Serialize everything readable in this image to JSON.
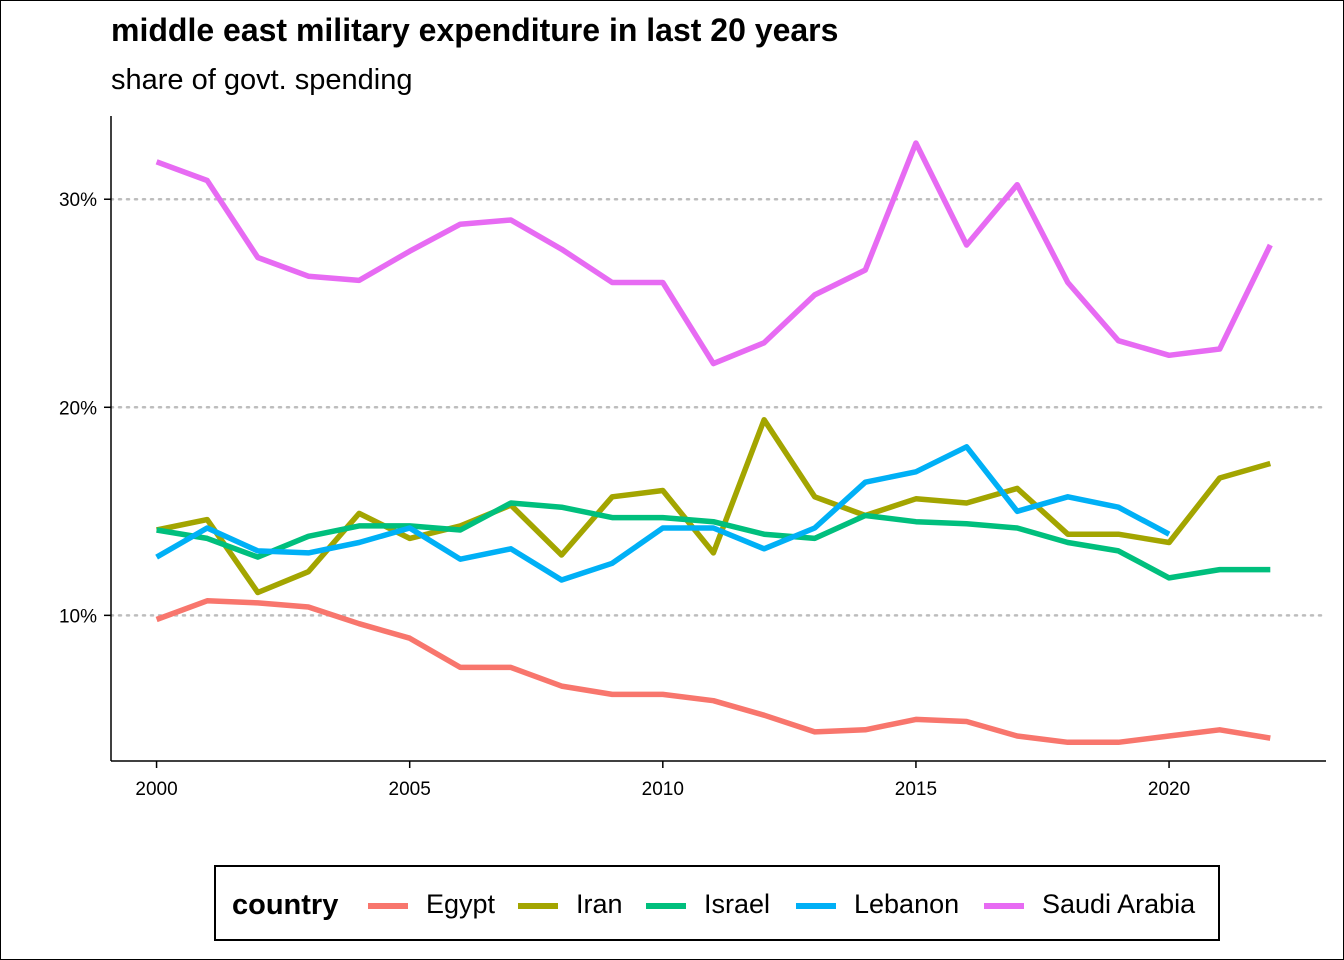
{
  "chart_data": {
    "type": "line",
    "title": "middle east military expenditure in last 20 years",
    "subtitle": "share of govt. spending",
    "xlabel": "",
    "ylabel": "",
    "xlim": [
      1999.1,
      2023.1
    ],
    "ylim": [
      3.0,
      34.0
    ],
    "x_ticks": [
      2000,
      2005,
      2010,
      2015,
      2020
    ],
    "x_tick_labels": [
      "2000",
      "2005",
      "2010",
      "2015",
      "2020"
    ],
    "y_ticks": [
      10,
      20,
      30
    ],
    "y_tick_labels": [
      "10%",
      "20%",
      "30%"
    ],
    "grid": "horizontal major, dotted",
    "legend": {
      "title": "country",
      "position": "bottom"
    },
    "x": [
      2000,
      2001,
      2002,
      2003,
      2004,
      2005,
      2006,
      2007,
      2008,
      2009,
      2010,
      2011,
      2012,
      2013,
      2014,
      2015,
      2016,
      2017,
      2018,
      2019,
      2020,
      2021,
      2022
    ],
    "series": [
      {
        "name": "Egypt",
        "color": "#F8766D",
        "values": [
          9.8,
          10.7,
          10.6,
          10.4,
          9.6,
          8.9,
          7.5,
          7.5,
          6.6,
          6.2,
          6.2,
          5.9,
          5.2,
          4.4,
          4.5,
          5.0,
          4.9,
          4.2,
          3.9,
          3.9,
          4.2,
          4.5,
          4.1
        ]
      },
      {
        "name": "Iran",
        "color": "#A3A500",
        "values": [
          14.1,
          14.6,
          11.1,
          12.1,
          14.9,
          13.7,
          14.3,
          15.3,
          12.9,
          15.7,
          16.0,
          13.0,
          19.4,
          15.7,
          14.8,
          15.6,
          15.4,
          16.1,
          13.9,
          13.9,
          13.5,
          16.6,
          17.3
        ]
      },
      {
        "name": "Israel",
        "color": "#00BF7D",
        "values": [
          14.1,
          13.7,
          12.8,
          13.8,
          14.3,
          14.3,
          14.1,
          15.4,
          15.2,
          14.7,
          14.7,
          14.5,
          13.9,
          13.7,
          14.8,
          14.5,
          14.4,
          14.2,
          13.5,
          13.1,
          11.8,
          12.2,
          12.2
        ]
      },
      {
        "name": "Lebanon",
        "color": "#00B0F6",
        "values": [
          12.8,
          14.2,
          13.1,
          13.0,
          13.5,
          14.2,
          12.7,
          13.2,
          11.7,
          12.5,
          14.2,
          14.2,
          13.2,
          14.2,
          16.4,
          16.9,
          18.1,
          15.0,
          15.7,
          15.2,
          13.9,
          null,
          null
        ]
      },
      {
        "name": "Saudi Arabia",
        "color": "#E76BF3",
        "values": [
          31.8,
          30.9,
          27.2,
          26.3,
          26.1,
          27.5,
          28.8,
          29.0,
          27.6,
          26.0,
          26.0,
          22.1,
          23.1,
          25.4,
          26.6,
          32.7,
          27.8,
          30.7,
          26.0,
          23.2,
          22.5,
          22.8,
          27.8
        ]
      }
    ]
  }
}
